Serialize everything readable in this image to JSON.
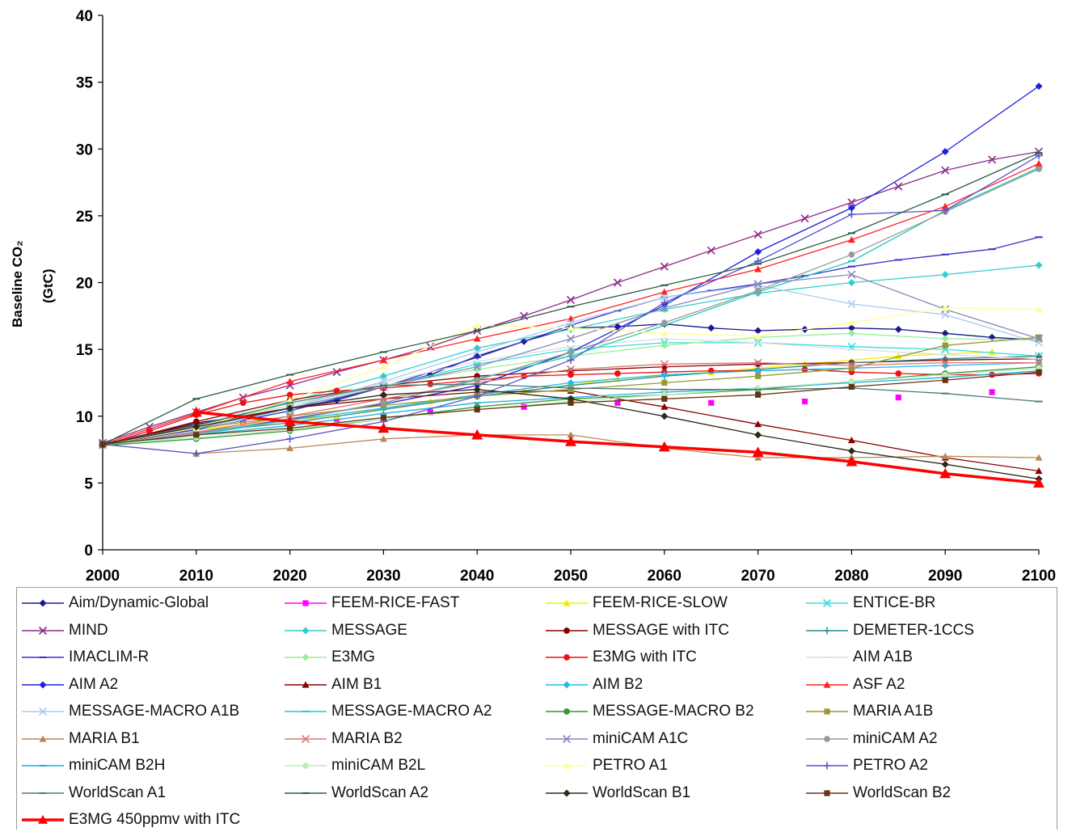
{
  "chart_data": {
    "type": "line",
    "ylabel_line1": "Baseline CO₂",
    "ylabel_line2": "(GtC)",
    "xlim": [
      2000,
      2100
    ],
    "ylim": [
      0,
      40
    ],
    "x_ticks": [
      "2000",
      "2010",
      "2020",
      "2030",
      "2040",
      "2050",
      "2060",
      "2070",
      "2080",
      "2090",
      "2100"
    ],
    "y_ticks": [
      "0",
      "5",
      "10",
      "15",
      "20",
      "25",
      "30",
      "35",
      "40"
    ],
    "grid": false,
    "legend_position": "bottom",
    "series": [
      {
        "name": "Aim/Dynamic-Global",
        "color": "#1a1a8c",
        "marker": "diamond",
        "x": [
          2000,
          2010,
          2015,
          2020,
          2025,
          2030,
          2035,
          2040,
          2045,
          2050,
          2055,
          2060,
          2065,
          2070,
          2075,
          2080,
          2085,
          2090,
          2095,
          2100
        ],
        "y": [
          7.9,
          9.5,
          10.0,
          10.6,
          11.2,
          12.2,
          13.1,
          14.5,
          15.6,
          16.6,
          16.7,
          16.9,
          16.6,
          16.4,
          16.5,
          16.6,
          16.5,
          16.2,
          15.9,
          15.7
        ]
      },
      {
        "name": "FEEM-RICE-FAST",
        "color": "#ff00ff",
        "marker": "square",
        "x": [
          2005,
          2015,
          2025,
          2035,
          2045,
          2055,
          2065,
          2075,
          2085,
          2095
        ],
        "y": [
          8.6,
          9.5,
          9.8,
          10.3,
          10.7,
          11.0,
          11.0,
          11.1,
          11.4,
          11.8
        ]
      },
      {
        "name": "FEEM-RICE-SLOW",
        "color": "#f0f000",
        "marker": "triangle",
        "x": [
          2005,
          2015,
          2025,
          2035,
          2045,
          2055,
          2065,
          2075,
          2085,
          2095
        ],
        "y": [
          8.5,
          9.4,
          10.0,
          11.1,
          11.9,
          12.8,
          13.3,
          13.9,
          14.5,
          14.8
        ]
      },
      {
        "name": "ENTICE-BR",
        "color": "#33dddd",
        "marker": "x",
        "x": [
          2000,
          2010,
          2020,
          2030,
          2040,
          2050,
          2060,
          2070,
          2080,
          2090,
          2100
        ],
        "y": [
          7.9,
          9.0,
          10.4,
          12.2,
          13.9,
          15.0,
          15.5,
          15.5,
          15.2,
          15.0,
          14.5
        ]
      },
      {
        "name": "MIND",
        "color": "#8b2b8b",
        "marker": "x",
        "x": [
          2000,
          2005,
          2010,
          2015,
          2020,
          2025,
          2030,
          2035,
          2040,
          2045,
          2050,
          2055,
          2060,
          2065,
          2070,
          2075,
          2080,
          2085,
          2090,
          2095,
          2100
        ],
        "y": [
          8.0,
          9.2,
          10.3,
          11.4,
          12.3,
          13.3,
          14.2,
          15.2,
          16.4,
          17.5,
          18.7,
          20.0,
          21.2,
          22.4,
          23.6,
          24.8,
          26.0,
          27.2,
          28.4,
          29.2,
          29.8
        ]
      },
      {
        "name": "MESSAGE",
        "color": "#33cccc",
        "marker": "diamond",
        "x": [
          2000,
          2010,
          2020,
          2030,
          2040,
          2050,
          2060,
          2070,
          2080,
          2090,
          2100
        ],
        "y": [
          7.8,
          9.3,
          11.1,
          13.0,
          15.1,
          16.5,
          18.0,
          19.2,
          20.0,
          20.6,
          21.3
        ]
      },
      {
        "name": "MESSAGE with ITC",
        "color": "#8b0000",
        "marker": "circle",
        "x": [
          2000,
          2010,
          2020,
          2030,
          2040,
          2050,
          2060,
          2070,
          2080,
          2090,
          2100
        ],
        "y": [
          7.8,
          9.6,
          11.2,
          12.3,
          13.0,
          13.4,
          13.7,
          13.9,
          14.0,
          14.2,
          14.3
        ]
      },
      {
        "name": "DEMETER-1CCS",
        "color": "#2f8f8f",
        "marker": "plus",
        "x": [
          2000,
          2010,
          2020,
          2030,
          2040,
          2050,
          2060,
          2070,
          2080,
          2090,
          2100
        ],
        "y": [
          7.8,
          8.8,
          9.5,
          10.5,
          11.5,
          12.3,
          13.0,
          13.5,
          14.0,
          14.3,
          14.5
        ]
      },
      {
        "name": "IMACLIM-R",
        "color": "#3333cc",
        "marker": "dash",
        "x": [
          2000,
          2010,
          2020,
          2030,
          2040,
          2050,
          2055,
          2060,
          2065,
          2070,
          2075,
          2080,
          2085,
          2090,
          2095,
          2100
        ],
        "y": [
          7.9,
          9.0,
          10.4,
          12.2,
          14.4,
          16.8,
          17.9,
          18.9,
          19.4,
          19.9,
          20.5,
          21.2,
          21.7,
          22.1,
          22.5,
          23.4
        ]
      },
      {
        "name": "E3MG",
        "color": "#99ee99",
        "marker": "diamond",
        "x": [
          2000,
          2010,
          2020,
          2030,
          2040,
          2050,
          2060,
          2070,
          2080,
          2090,
          2100
        ],
        "y": [
          7.8,
          9.3,
          10.8,
          12.3,
          13.5,
          14.5,
          15.3,
          15.9,
          16.2,
          15.8,
          15.7
        ]
      },
      {
        "name": "E3MG with ITC",
        "color": "#ee1111",
        "marker": "circle",
        "x": [
          2000,
          2005,
          2010,
          2015,
          2020,
          2025,
          2030,
          2035,
          2040,
          2045,
          2050,
          2055,
          2060,
          2065,
          2070,
          2075,
          2080,
          2085,
          2090,
          2095,
          2100
        ],
        "y": [
          7.8,
          8.9,
          10.1,
          11.0,
          11.6,
          11.9,
          12.1,
          12.4,
          12.7,
          13.0,
          13.1,
          13.2,
          13.3,
          13.4,
          13.4,
          13.5,
          13.3,
          13.2,
          13.1,
          13.1,
          13.2
        ]
      },
      {
        "name": "AIM A1B",
        "color": "#dddddd",
        "marker": "dash",
        "x": [
          2000,
          2010,
          2020,
          2030,
          2040,
          2050,
          2060,
          2070,
          2080,
          2090,
          2100
        ],
        "y": [
          7.9,
          9.1,
          10.8,
          12.5,
          14.1,
          15.2,
          15.8,
          15.5,
          15.0,
          14.6,
          14.3
        ]
      },
      {
        "name": "AIM A2",
        "color": "#1f1fdd",
        "marker": "diamond",
        "x": [
          2000,
          2010,
          2020,
          2030,
          2040,
          2050,
          2060,
          2070,
          2080,
          2090,
          2100
        ],
        "y": [
          7.9,
          8.7,
          9.8,
          10.9,
          12.3,
          14.8,
          18.3,
          22.3,
          25.6,
          29.8,
          34.7
        ]
      },
      {
        "name": "AIM B1",
        "color": "#8b0000",
        "marker": "triangle",
        "x": [
          2000,
          2010,
          2020,
          2030,
          2040,
          2050,
          2060,
          2070,
          2080,
          2090,
          2100
        ],
        "y": [
          7.9,
          9.4,
          10.6,
          11.3,
          11.8,
          11.9,
          10.7,
          9.4,
          8.2,
          6.9,
          5.9
        ]
      },
      {
        "name": "AIM B2",
        "color": "#22bbee",
        "marker": "diamond",
        "x": [
          2000,
          2010,
          2020,
          2030,
          2040,
          2050,
          2060,
          2070,
          2080,
          2090,
          2100
        ],
        "y": [
          7.9,
          8.8,
          9.7,
          10.6,
          11.6,
          12.5,
          13.1,
          13.4,
          13.6,
          13.8,
          14.0
        ]
      },
      {
        "name": "ASF A2",
        "color": "#ff2222",
        "marker": "triangle",
        "x": [
          2000,
          2010,
          2020,
          2030,
          2040,
          2050,
          2060,
          2070,
          2080,
          2090,
          2100
        ],
        "y": [
          7.9,
          10.2,
          12.6,
          14.2,
          15.8,
          17.3,
          19.3,
          21.0,
          23.2,
          25.7,
          28.9
        ]
      },
      {
        "name": "MESSAGE-MACRO A1B",
        "color": "#aaccee",
        "marker": "x",
        "x": [
          2000,
          2010,
          2020,
          2030,
          2040,
          2050,
          2060,
          2070,
          2080,
          2090,
          2100
        ],
        "y": [
          7.8,
          8.9,
          10.6,
          12.6,
          14.8,
          17.0,
          18.9,
          19.8,
          18.4,
          17.6,
          15.5
        ]
      },
      {
        "name": "MESSAGE-MACRO A2",
        "color": "#22ccbb",
        "marker": "dash",
        "x": [
          2000,
          2010,
          2020,
          2030,
          2040,
          2050,
          2060,
          2070,
          2080,
          2090,
          2100
        ],
        "y": [
          7.8,
          8.6,
          9.7,
          11.0,
          12.8,
          14.5,
          16.8,
          19.3,
          21.6,
          25.4,
          28.6
        ]
      },
      {
        "name": "MESSAGE-MACRO B2",
        "color": "#339933",
        "marker": "circle",
        "x": [
          2000,
          2010,
          2020,
          2030,
          2040,
          2050,
          2060,
          2070,
          2080,
          2090,
          2100
        ],
        "y": [
          7.8,
          8.3,
          8.9,
          9.8,
          10.7,
          11.3,
          11.6,
          12.0,
          12.6,
          13.2,
          13.7
        ]
      },
      {
        "name": "MARIA A1B",
        "color": "#999933",
        "marker": "square",
        "x": [
          2000,
          2010,
          2020,
          2030,
          2040,
          2050,
          2060,
          2070,
          2080,
          2090,
          2100
        ],
        "y": [
          7.9,
          9.1,
          10.0,
          10.8,
          11.5,
          12.0,
          12.5,
          13.0,
          13.6,
          15.3,
          15.9
        ]
      },
      {
        "name": "MARIA B1",
        "color": "#bb8855",
        "marker": "triangle",
        "x": [
          2000,
          2010,
          2020,
          2030,
          2040,
          2050,
          2060,
          2070,
          2080,
          2090,
          2100
        ],
        "y": [
          7.9,
          7.2,
          7.6,
          8.3,
          8.6,
          8.6,
          7.6,
          6.9,
          6.9,
          7.0,
          6.9
        ]
      },
      {
        "name": "MARIA B2",
        "color": "#dd7777",
        "marker": "x",
        "x": [
          2000,
          2010,
          2020,
          2030,
          2040,
          2050,
          2060,
          2070,
          2080,
          2090,
          2100
        ],
        "y": [
          7.9,
          8.8,
          10.0,
          11.3,
          12.5,
          13.5,
          13.9,
          14.0,
          13.8,
          14.0,
          14.0
        ]
      },
      {
        "name": "miniCAM A1C",
        "color": "#8888bb",
        "marker": "x",
        "x": [
          2000,
          2010,
          2020,
          2030,
          2040,
          2050,
          2060,
          2070,
          2080,
          2090,
          2100
        ],
        "y": [
          7.9,
          9.1,
          10.6,
          12.2,
          13.7,
          15.8,
          18.1,
          19.9,
          20.6,
          18.0,
          15.8
        ]
      },
      {
        "name": "miniCAM A2",
        "color": "#999999",
        "marker": "circle",
        "x": [
          2000,
          2010,
          2020,
          2030,
          2040,
          2050,
          2060,
          2070,
          2080,
          2090,
          2100
        ],
        "y": [
          7.9,
          8.7,
          9.7,
          11.0,
          12.7,
          14.8,
          17.0,
          19.4,
          22.1,
          25.3,
          28.5
        ]
      },
      {
        "name": "miniCAM B2H",
        "color": "#22aadd",
        "marker": "dash",
        "x": [
          2000,
          2010,
          2020,
          2030,
          2040,
          2050,
          2060,
          2070,
          2080,
          2090,
          2100
        ],
        "y": [
          7.9,
          8.6,
          9.3,
          10.2,
          11.0,
          11.4,
          11.8,
          12.1,
          12.5,
          12.9,
          13.4
        ]
      },
      {
        "name": "miniCAM B2L",
        "color": "#bbeebb",
        "marker": "circle",
        "x": [
          2000,
          2010,
          2020,
          2030,
          2040,
          2050,
          2060,
          2070,
          2080,
          2090,
          2100
        ],
        "y": [
          7.9,
          8.4,
          9.0,
          9.8,
          10.5,
          11.1,
          11.6,
          12.1,
          12.6,
          13.1,
          13.6
        ]
      },
      {
        "name": "PETRO A1",
        "color": "#ffff99",
        "marker": "triangle",
        "x": [
          2000,
          2010,
          2020,
          2030,
          2040,
          2050,
          2060,
          2070,
          2080,
          2090,
          2100
        ],
        "y": [
          7.9,
          9.1,
          11.2,
          13.7,
          16.8,
          16.6,
          16.2,
          16.0,
          17.0,
          18.1,
          18.0
        ]
      },
      {
        "name": "PETRO A2",
        "color": "#5555cc",
        "marker": "plus",
        "x": [
          2000,
          2010,
          2020,
          2030,
          2040,
          2050,
          2060,
          2070,
          2080,
          2090,
          2100
        ],
        "y": [
          7.9,
          7.2,
          8.3,
          9.6,
          11.5,
          14.2,
          18.5,
          21.6,
          25.1,
          25.4,
          29.5
        ]
      },
      {
        "name": "WorldScan A1",
        "color": "#4a7a7a",
        "marker": "dash",
        "x": [
          2000,
          2010,
          2020,
          2030,
          2040,
          2050,
          2060,
          2070,
          2080,
          2090,
          2100
        ],
        "y": [
          7.9,
          9.3,
          11.0,
          12.3,
          12.4,
          12.1,
          12.0,
          12.0,
          12.1,
          11.7,
          11.1
        ]
      },
      {
        "name": "WorldScan A2",
        "color": "#2e5e3e",
        "marker": "dash",
        "x": [
          2000,
          2010,
          2020,
          2030,
          2040,
          2050,
          2060,
          2070,
          2080,
          2090,
          2100
        ],
        "y": [
          7.9,
          11.3,
          13.1,
          14.8,
          16.4,
          18.2,
          19.8,
          21.4,
          23.7,
          26.6,
          29.7
        ]
      },
      {
        "name": "WorldScan B1",
        "color": "#2a2a1a",
        "marker": "diamond",
        "x": [
          2000,
          2010,
          2020,
          2030,
          2040,
          2050,
          2060,
          2070,
          2080,
          2090,
          2100
        ],
        "y": [
          7.9,
          9.2,
          10.6,
          11.6,
          12.0,
          11.3,
          10.0,
          8.6,
          7.4,
          6.4,
          5.3
        ]
      },
      {
        "name": "WorldScan B2",
        "color": "#663311",
        "marker": "square",
        "x": [
          2000,
          2010,
          2020,
          2030,
          2040,
          2050,
          2060,
          2070,
          2080,
          2090,
          2100
        ],
        "y": [
          7.9,
          8.6,
          9.1,
          9.9,
          10.5,
          11.0,
          11.3,
          11.6,
          12.2,
          12.7,
          13.3
        ]
      },
      {
        "name": "E3MG 450ppmv with ITC",
        "color": "#ff0000",
        "marker": "triangle",
        "thick": true,
        "x": [
          2010,
          2020,
          2030,
          2040,
          2050,
          2060,
          2070,
          2080,
          2090,
          2100
        ],
        "y": [
          10.3,
          9.6,
          9.1,
          8.6,
          8.1,
          7.7,
          7.3,
          6.6,
          5.7,
          5.0
        ]
      }
    ]
  }
}
